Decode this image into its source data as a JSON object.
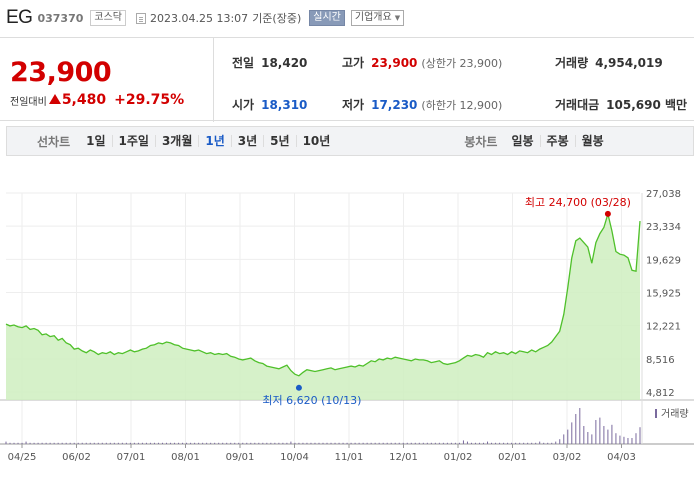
{
  "header": {
    "name": "EG",
    "code": "037370",
    "market": "코스닥",
    "datetime": "2023.04.25 13:07",
    "basis": "기준(장중)",
    "realtime": "실시간",
    "company_info": "기업개요"
  },
  "price": {
    "current": "23,900",
    "change_label": "전일대비",
    "change": "5,480",
    "change_pct": "+29.75%"
  },
  "stats": {
    "prev_label": "전일",
    "prev": "18,420",
    "high_label": "고가",
    "high": "23,900",
    "upper_limit": "(상한가 23,900)",
    "volume_label": "거래량",
    "volume": "4,954,019",
    "open_label": "시가",
    "open": "18,310",
    "low_label": "저가",
    "low": "17,230",
    "lower_limit": "(하한가 12,900)",
    "amount_label": "거래대금",
    "amount": "105,690 백만"
  },
  "period_tabs": {
    "line_label": "선차트",
    "line_options": [
      "1일",
      "1주일",
      "3개월",
      "1년",
      "3년",
      "5년",
      "10년"
    ],
    "selected": "1년",
    "candle_label": "봉차트",
    "candle_options": [
      "일봉",
      "주봉",
      "월봉"
    ]
  },
  "colors": {
    "up": "#d20000",
    "down": "#1a5bc6",
    "line": "#4fc02a",
    "area": "#cfeec0",
    "volume": "#7a6a9e"
  },
  "chart_data": {
    "type": "area",
    "y_ticks": [
      "27,038",
      "23,334",
      "19,629",
      "15,925",
      "12,221",
      "8,516",
      "4,812"
    ],
    "ylim": [
      4812,
      27038
    ],
    "x_ticks": [
      "04/25",
      "06/02",
      "07/01",
      "08/01",
      "09/01",
      "10/04",
      "11/01",
      "12/01",
      "01/02",
      "02/01",
      "03/02",
      "04/03"
    ],
    "max_annotation": "최고 24,700 (03/28)",
    "min_annotation": "최저 6,620 (10/13)",
    "max_value": 24700,
    "min_value": 6620,
    "volume_legend": "거래량",
    "series": [
      {
        "values": [
          12400,
          12200,
          12300,
          12100,
          12000,
          12200,
          11800,
          11900,
          11700,
          11200,
          11300,
          11000,
          11100,
          10600,
          10800,
          10300,
          10100,
          9600,
          9700,
          9400,
          9200,
          9500,
          9300,
          9000,
          9200,
          9100,
          9300,
          9000,
          9200,
          9100,
          9300,
          9500,
          9300,
          9400,
          9600,
          9700,
          10000,
          10100,
          10300,
          10200,
          10400,
          10300,
          10100,
          10000,
          9700,
          9600,
          9500,
          9400,
          9500,
          9300,
          9100,
          9200,
          9000,
          9100,
          9000,
          9100,
          8800,
          8700,
          8500,
          8400,
          8500,
          8600,
          8300,
          8100,
          8000,
          7700,
          7600,
          7500,
          7400,
          7600,
          7800,
          7200,
          6800,
          6620,
          7000,
          7300,
          7200,
          7100,
          7200,
          7300,
          7400,
          7500,
          7300,
          7400,
          7500,
          7600,
          7700,
          7600,
          7800,
          7700,
          8000,
          8300,
          8200,
          8500,
          8400,
          8600,
          8500,
          8700,
          8600,
          8500,
          8400,
          8300,
          8500,
          8400,
          8400,
          8300,
          8100,
          8200,
          8300,
          8000,
          7900,
          8000,
          8100,
          8300,
          8600,
          8900,
          8800,
          9000,
          8900,
          8700,
          9200,
          9000,
          9300,
          9100,
          9200,
          9000,
          9300,
          9100,
          9400,
          9300,
          9200,
          9500,
          9300,
          9600,
          9800,
          10000,
          10400,
          11000,
          11600,
          13500,
          16500,
          19800,
          21700,
          22000,
          21500,
          21000,
          19200,
          21500,
          22500,
          23200,
          24700,
          22800,
          20500,
          20200,
          20100,
          19800,
          18400,
          18300,
          23900
        ]
      }
    ],
    "volume": [
      2,
      1,
      1,
      1,
      1,
      2,
      1,
      1,
      1,
      1,
      1,
      1,
      1,
      1,
      1,
      1,
      1,
      1,
      1,
      1,
      1,
      1,
      1,
      1,
      1,
      1,
      1,
      1,
      1,
      1,
      1,
      1,
      1,
      1,
      1,
      1,
      1,
      1,
      1,
      1,
      1,
      1,
      1,
      1,
      1,
      1,
      1,
      1,
      1,
      1,
      1,
      1,
      1,
      1,
      1,
      1,
      1,
      1,
      1,
      1,
      1,
      1,
      1,
      1,
      1,
      1,
      1,
      1,
      1,
      1,
      1,
      2,
      1,
      1,
      1,
      1,
      1,
      1,
      1,
      1,
      1,
      1,
      1,
      1,
      1,
      1,
      1,
      1,
      1,
      1,
      1,
      1,
      1,
      1,
      1,
      1,
      1,
      1,
      1,
      1,
      1,
      1,
      1,
      1,
      1,
      1,
      1,
      1,
      1,
      1,
      1,
      1,
      1,
      1,
      3,
      2,
      1,
      1,
      1,
      1,
      2,
      1,
      1,
      1,
      1,
      1,
      1,
      1,
      1,
      1,
      1,
      1,
      1,
      2,
      1,
      1,
      1,
      2,
      4,
      8,
      12,
      18,
      25,
      30,
      15,
      10,
      8,
      20,
      22,
      15,
      12,
      16,
      9,
      7,
      6,
      5,
      5,
      9,
      14
    ]
  }
}
